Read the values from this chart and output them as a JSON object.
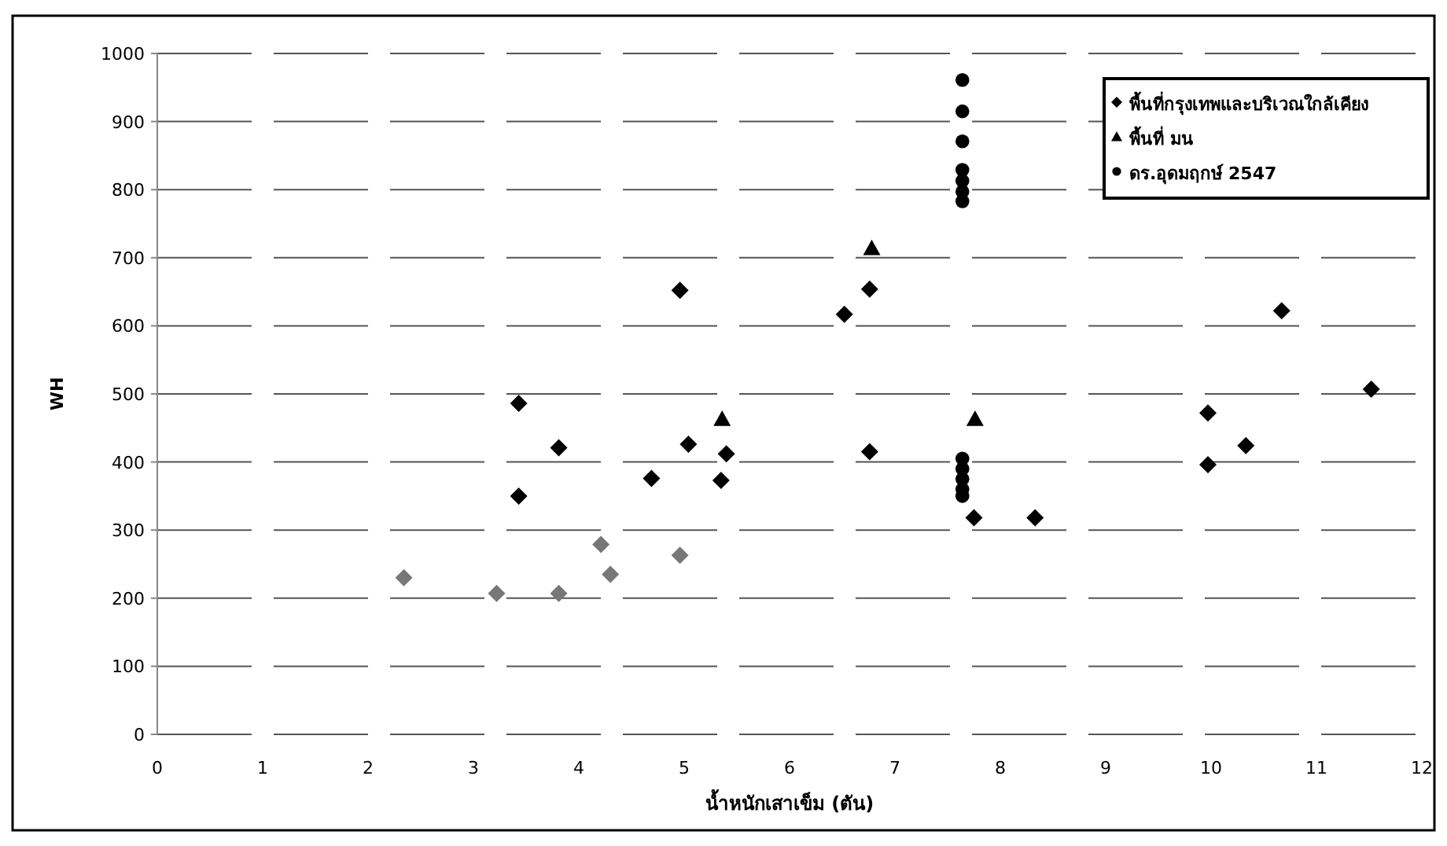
{
  "chart_data": {
    "type": "scatter",
    "xlabel": "น้ำหนักเสาเข็ม (ตัน)",
    "ylabel": "WH",
    "xlim": [
      0,
      12
    ],
    "xticks": [
      0,
      1,
      2,
      3,
      4,
      5,
      6,
      7,
      8,
      9,
      10,
      11,
      12
    ],
    "ylim": [
      0,
      1000
    ],
    "yticks": [
      0,
      100,
      200,
      300,
      400,
      500,
      600,
      700,
      800,
      900,
      1000
    ],
    "grid": "y",
    "line_style": "dashed",
    "legend": "top right",
    "series": [
      {
        "name": "พื้นที่กรุงเทพและบริเวณใกล้เคียง",
        "color": "#000000",
        "marker": "diamond",
        "x": [
          3.43,
          3.43,
          3.81,
          4.69,
          5.04,
          4.96,
          5.35,
          5.4,
          6.76,
          6.52,
          6.76,
          7.75,
          8.33,
          9.97,
          9.97,
          10.33,
          10.67,
          11.52
        ],
        "values": [
          486,
          350,
          421,
          376,
          426,
          652,
          373,
          412,
          415,
          617,
          654,
          318,
          318,
          396,
          472,
          424,
          622,
          507
        ]
      },
      {
        "name": "พื้นที่ มน",
        "color": "#000000",
        "marker": "triangle",
        "x": [
          6.78,
          5.36,
          7.76
        ],
        "values": [
          714,
          463,
          463
        ]
      },
      {
        "name": "ดร.อุดมฤกษ์ 2547",
        "color": "#000000",
        "marker": "circle",
        "x": [
          7.64,
          7.64,
          7.64,
          7.64,
          7.64,
          7.64,
          7.64,
          7.64,
          7.64,
          7.64,
          7.64,
          7.64
        ],
        "values": [
          961,
          915,
          871,
          829,
          813,
          797,
          783,
          405,
          390,
          375,
          360,
          350
        ]
      },
      {
        "color": "#777777",
        "marker": "diamond",
        "x": [
          2.34,
          3.22,
          3.81,
          4.21,
          4.3,
          4.96
        ],
        "values": [
          230,
          207,
          207,
          279,
          235,
          263
        ]
      }
    ]
  }
}
